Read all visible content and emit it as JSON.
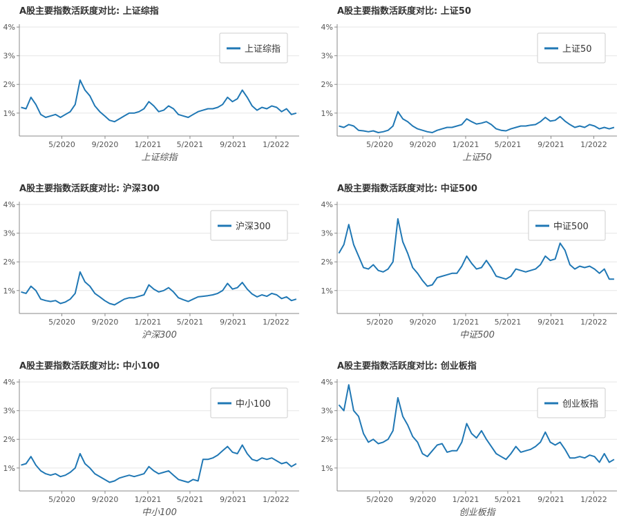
{
  "page": {
    "colors": {
      "series": "#1f77b4",
      "grid": "#e5e5e5",
      "axis": "#888888"
    }
  },
  "chart_data": [
    {
      "type": "line",
      "title": "A股主要指数活跃度对比: 上证综指",
      "xlabel": "上证综指",
      "ylabel": "",
      "legend": "top-right",
      "grid": true,
      "yticks": [
        "1%",
        "2%",
        "3%",
        "4%"
      ],
      "xticks": [
        "5/2020",
        "9/2020",
        "1/2021",
        "5/2021",
        "9/2021",
        "1/2022"
      ],
      "ylim": [
        0.2,
        4.1
      ],
      "x": [
        "2020-01-06",
        "2020-01-20",
        "2020-02-03",
        "2020-02-17",
        "2020-03-02",
        "2020-03-16",
        "2020-03-30",
        "2020-04-13",
        "2020-04-27",
        "2020-05-11",
        "2020-05-25",
        "2020-06-08",
        "2020-06-22",
        "2020-07-06",
        "2020-07-20",
        "2020-08-03",
        "2020-08-17",
        "2020-08-31",
        "2020-09-14",
        "2020-09-28",
        "2020-10-12",
        "2020-10-26",
        "2020-11-09",
        "2020-11-23",
        "2020-12-07",
        "2020-12-21",
        "2021-01-04",
        "2021-01-18",
        "2021-02-01",
        "2021-02-15",
        "2021-03-01",
        "2021-03-15",
        "2021-03-29",
        "2021-04-12",
        "2021-04-26",
        "2021-05-10",
        "2021-05-24",
        "2021-06-07",
        "2021-06-21",
        "2021-07-05",
        "2021-07-19",
        "2021-08-02",
        "2021-08-16",
        "2021-08-30",
        "2021-09-13",
        "2021-09-27",
        "2021-10-11",
        "2021-10-25",
        "2021-11-08",
        "2021-11-22",
        "2021-12-06",
        "2021-12-20",
        "2022-01-03",
        "2022-01-17",
        "2022-01-31",
        "2022-02-14",
        "2022-02-28"
      ],
      "series": [
        {
          "name": "上证综指",
          "values": [
            1.2,
            1.15,
            1.55,
            1.3,
            0.95,
            0.85,
            0.9,
            0.95,
            0.85,
            0.95,
            1.05,
            1.3,
            2.15,
            1.8,
            1.6,
            1.25,
            1.05,
            0.9,
            0.75,
            0.7,
            0.8,
            0.9,
            1.0,
            1.0,
            1.05,
            1.15,
            1.4,
            1.25,
            1.05,
            1.1,
            1.25,
            1.15,
            0.95,
            0.9,
            0.85,
            0.95,
            1.05,
            1.1,
            1.15,
            1.15,
            1.2,
            1.3,
            1.55,
            1.4,
            1.5,
            1.8,
            1.55,
            1.25,
            1.1,
            1.2,
            1.15,
            1.25,
            1.2,
            1.05,
            1.15,
            0.95,
            1.0
          ]
        }
      ]
    },
    {
      "type": "line",
      "title": "A股主要指数活跃度对比: 上证50",
      "xlabel": "上证50",
      "ylabel": "",
      "legend": "top-right",
      "grid": true,
      "yticks": [
        "1%",
        "2%",
        "3%",
        "4%"
      ],
      "xticks": [
        "5/2020",
        "9/2020",
        "1/2021",
        "5/2021",
        "9/2021",
        "1/2022"
      ],
      "ylim": [
        0.2,
        4.1
      ],
      "x": [
        "2020-01-06",
        "2020-01-20",
        "2020-02-03",
        "2020-02-17",
        "2020-03-02",
        "2020-03-16",
        "2020-03-30",
        "2020-04-13",
        "2020-04-27",
        "2020-05-11",
        "2020-05-25",
        "2020-06-08",
        "2020-06-22",
        "2020-07-06",
        "2020-07-20",
        "2020-08-03",
        "2020-08-17",
        "2020-08-31",
        "2020-09-14",
        "2020-09-28",
        "2020-10-12",
        "2020-10-26",
        "2020-11-09",
        "2020-11-23",
        "2020-12-07",
        "2020-12-21",
        "2021-01-04",
        "2021-01-18",
        "2021-02-01",
        "2021-02-15",
        "2021-03-01",
        "2021-03-15",
        "2021-03-29",
        "2021-04-12",
        "2021-04-26",
        "2021-05-10",
        "2021-05-24",
        "2021-06-07",
        "2021-06-21",
        "2021-07-05",
        "2021-07-19",
        "2021-08-02",
        "2021-08-16",
        "2021-08-30",
        "2021-09-13",
        "2021-09-27",
        "2021-10-11",
        "2021-10-25",
        "2021-11-08",
        "2021-11-22",
        "2021-12-06",
        "2021-12-20",
        "2022-01-03",
        "2022-01-17",
        "2022-01-31",
        "2022-02-14",
        "2022-02-28"
      ],
      "series": [
        {
          "name": "上证50",
          "values": [
            0.55,
            0.5,
            0.6,
            0.55,
            0.4,
            0.38,
            0.35,
            0.38,
            0.32,
            0.35,
            0.4,
            0.55,
            1.05,
            0.8,
            0.7,
            0.55,
            0.45,
            0.4,
            0.35,
            0.32,
            0.4,
            0.45,
            0.5,
            0.5,
            0.55,
            0.6,
            0.8,
            0.7,
            0.62,
            0.65,
            0.7,
            0.6,
            0.45,
            0.4,
            0.38,
            0.45,
            0.5,
            0.55,
            0.55,
            0.58,
            0.6,
            0.7,
            0.85,
            0.72,
            0.75,
            0.88,
            0.72,
            0.6,
            0.5,
            0.55,
            0.5,
            0.6,
            0.55,
            0.45,
            0.5,
            0.45,
            0.5
          ]
        }
      ]
    },
    {
      "type": "line",
      "title": "A股主要指数活跃度对比: 沪深300",
      "xlabel": "沪深300",
      "ylabel": "",
      "legend": "top-right",
      "grid": true,
      "yticks": [
        "1%",
        "2%",
        "3%",
        "4%"
      ],
      "xticks": [
        "5/2020",
        "9/2020",
        "1/2021",
        "5/2021",
        "9/2021",
        "1/2022"
      ],
      "ylim": [
        0.2,
        4.1
      ],
      "x": [
        "2020-01-06",
        "2020-01-20",
        "2020-02-03",
        "2020-02-17",
        "2020-03-02",
        "2020-03-16",
        "2020-03-30",
        "2020-04-13",
        "2020-04-27",
        "2020-05-11",
        "2020-05-25",
        "2020-06-08",
        "2020-06-22",
        "2020-07-06",
        "2020-07-20",
        "2020-08-03",
        "2020-08-17",
        "2020-08-31",
        "2020-09-14",
        "2020-09-28",
        "2020-10-12",
        "2020-10-26",
        "2020-11-09",
        "2020-11-23",
        "2020-12-07",
        "2020-12-21",
        "2021-01-04",
        "2021-01-18",
        "2021-02-01",
        "2021-02-15",
        "2021-03-01",
        "2021-03-15",
        "2021-03-29",
        "2021-04-12",
        "2021-04-26",
        "2021-05-10",
        "2021-05-24",
        "2021-06-07",
        "2021-06-21",
        "2021-07-05",
        "2021-07-19",
        "2021-08-02",
        "2021-08-16",
        "2021-08-30",
        "2021-09-13",
        "2021-09-27",
        "2021-10-11",
        "2021-10-25",
        "2021-11-08",
        "2021-11-22",
        "2021-12-06",
        "2021-12-20",
        "2022-01-03",
        "2022-01-17",
        "2022-01-31",
        "2022-02-14",
        "2022-02-28"
      ],
      "series": [
        {
          "name": "沪深300",
          "values": [
            0.95,
            0.9,
            1.15,
            1.0,
            0.7,
            0.65,
            0.62,
            0.65,
            0.55,
            0.6,
            0.7,
            0.9,
            1.65,
            1.3,
            1.15,
            0.9,
            0.78,
            0.65,
            0.55,
            0.5,
            0.6,
            0.7,
            0.75,
            0.75,
            0.8,
            0.85,
            1.2,
            1.05,
            0.95,
            1.0,
            1.1,
            0.95,
            0.75,
            0.68,
            0.62,
            0.7,
            0.78,
            0.8,
            0.82,
            0.85,
            0.9,
            1.0,
            1.25,
            1.05,
            1.1,
            1.28,
            1.05,
            0.88,
            0.78,
            0.85,
            0.8,
            0.9,
            0.85,
            0.72,
            0.78,
            0.65,
            0.7
          ]
        }
      ]
    },
    {
      "type": "line",
      "title": "A股主要指数活跃度对比: 中证500",
      "xlabel": "中证500",
      "ylabel": "",
      "legend": "top-right",
      "grid": true,
      "yticks": [
        "1%",
        "2%",
        "3%",
        "4%"
      ],
      "xticks": [
        "5/2020",
        "9/2020",
        "1/2021",
        "5/2021",
        "9/2021",
        "1/2022"
      ],
      "ylim": [
        0.2,
        4.1
      ],
      "x": [
        "2020-01-06",
        "2020-01-20",
        "2020-02-03",
        "2020-02-17",
        "2020-03-02",
        "2020-03-16",
        "2020-03-30",
        "2020-04-13",
        "2020-04-27",
        "2020-05-11",
        "2020-05-25",
        "2020-06-08",
        "2020-06-22",
        "2020-07-06",
        "2020-07-20",
        "2020-08-03",
        "2020-08-17",
        "2020-08-31",
        "2020-09-14",
        "2020-09-28",
        "2020-10-12",
        "2020-10-26",
        "2020-11-09",
        "2020-11-23",
        "2020-12-07",
        "2020-12-21",
        "2021-01-04",
        "2021-01-18",
        "2021-02-01",
        "2021-02-15",
        "2021-03-01",
        "2021-03-15",
        "2021-03-29",
        "2021-04-12",
        "2021-04-26",
        "2021-05-10",
        "2021-05-24",
        "2021-06-07",
        "2021-06-21",
        "2021-07-05",
        "2021-07-19",
        "2021-08-02",
        "2021-08-16",
        "2021-08-30",
        "2021-09-13",
        "2021-09-27",
        "2021-10-11",
        "2021-10-25",
        "2021-11-08",
        "2021-11-22",
        "2021-12-06",
        "2021-12-20",
        "2022-01-03",
        "2022-01-17",
        "2022-01-31",
        "2022-02-14",
        "2022-02-28"
      ],
      "series": [
        {
          "name": "中证500",
          "values": [
            2.3,
            2.6,
            3.3,
            2.6,
            2.2,
            1.8,
            1.75,
            1.9,
            1.7,
            1.65,
            1.75,
            2.0,
            3.5,
            2.7,
            2.3,
            1.8,
            1.6,
            1.35,
            1.15,
            1.2,
            1.45,
            1.5,
            1.55,
            1.6,
            1.6,
            1.85,
            2.2,
            1.95,
            1.75,
            1.8,
            2.05,
            1.8,
            1.5,
            1.45,
            1.4,
            1.5,
            1.75,
            1.7,
            1.65,
            1.7,
            1.75,
            1.9,
            2.2,
            2.05,
            2.1,
            2.65,
            2.4,
            1.9,
            1.75,
            1.85,
            1.8,
            1.85,
            1.75,
            1.6,
            1.75,
            1.4,
            1.4
          ]
        }
      ]
    },
    {
      "type": "line",
      "title": "A股主要指数活跃度对比: 中小100",
      "xlabel": "中小100",
      "ylabel": "",
      "legend": "top-right",
      "grid": true,
      "yticks": [
        "1%",
        "2%",
        "3%",
        "4%"
      ],
      "xticks": [
        "5/2020",
        "9/2020",
        "1/2021",
        "5/2021",
        "9/2021",
        "1/2022"
      ],
      "ylim": [
        0.2,
        4.1
      ],
      "x": [
        "2020-01-06",
        "2020-01-20",
        "2020-02-03",
        "2020-02-17",
        "2020-03-02",
        "2020-03-16",
        "2020-03-30",
        "2020-04-13",
        "2020-04-27",
        "2020-05-11",
        "2020-05-25",
        "2020-06-08",
        "2020-06-22",
        "2020-07-06",
        "2020-07-20",
        "2020-08-03",
        "2020-08-17",
        "2020-08-31",
        "2020-09-14",
        "2020-09-28",
        "2020-10-12",
        "2020-10-26",
        "2020-11-09",
        "2020-11-23",
        "2020-12-07",
        "2020-12-21",
        "2021-01-04",
        "2021-01-18",
        "2021-02-01",
        "2021-02-15",
        "2021-03-01",
        "2021-03-15",
        "2021-03-29",
        "2021-04-12",
        "2021-04-26",
        "2021-05-10",
        "2021-05-24",
        "2021-06-07",
        "2021-06-21",
        "2021-07-05",
        "2021-07-19",
        "2021-08-02",
        "2021-08-16",
        "2021-08-30",
        "2021-09-13",
        "2021-09-27",
        "2021-10-11",
        "2021-10-25",
        "2021-11-08",
        "2021-11-22",
        "2021-12-06",
        "2021-12-20",
        "2022-01-03",
        "2022-01-17",
        "2022-01-31",
        "2022-02-14",
        "2022-02-28"
      ],
      "series": [
        {
          "name": "中小100",
          "values": [
            1.1,
            1.15,
            1.4,
            1.1,
            0.9,
            0.8,
            0.75,
            0.8,
            0.7,
            0.75,
            0.85,
            1.0,
            1.5,
            1.15,
            1.0,
            0.8,
            0.7,
            0.6,
            0.5,
            0.55,
            0.65,
            0.7,
            0.75,
            0.7,
            0.75,
            0.8,
            1.05,
            0.9,
            0.8,
            0.85,
            0.9,
            0.75,
            0.6,
            0.55,
            0.5,
            0.6,
            0.55,
            1.3,
            1.3,
            1.35,
            1.45,
            1.6,
            1.75,
            1.55,
            1.5,
            1.8,
            1.5,
            1.3,
            1.25,
            1.35,
            1.3,
            1.35,
            1.25,
            1.15,
            1.2,
            1.05,
            1.15
          ]
        }
      ]
    },
    {
      "type": "line",
      "title": "A股主要指数活跃度对比: 创业板指",
      "xlabel": "创业板指",
      "ylabel": "",
      "legend": "top-right",
      "grid": true,
      "yticks": [
        "1%",
        "2%",
        "3%",
        "4%"
      ],
      "xticks": [
        "5/2020",
        "9/2020",
        "1/2021",
        "5/2021",
        "9/2021",
        "1/2022"
      ],
      "ylim": [
        0.2,
        4.1
      ],
      "x": [
        "2020-01-06",
        "2020-01-20",
        "2020-02-03",
        "2020-02-17",
        "2020-03-02",
        "2020-03-16",
        "2020-03-30",
        "2020-04-13",
        "2020-04-27",
        "2020-05-11",
        "2020-05-25",
        "2020-06-08",
        "2020-06-22",
        "2020-07-06",
        "2020-07-20",
        "2020-08-03",
        "2020-08-17",
        "2020-08-31",
        "2020-09-14",
        "2020-09-28",
        "2020-10-12",
        "2020-10-26",
        "2020-11-09",
        "2020-11-23",
        "2020-12-07",
        "2020-12-21",
        "2021-01-04",
        "2021-01-18",
        "2021-02-01",
        "2021-02-15",
        "2021-03-01",
        "2021-03-15",
        "2021-03-29",
        "2021-04-12",
        "2021-04-26",
        "2021-05-10",
        "2021-05-24",
        "2021-06-07",
        "2021-06-21",
        "2021-07-05",
        "2021-07-19",
        "2021-08-02",
        "2021-08-16",
        "2021-08-30",
        "2021-09-13",
        "2021-09-27",
        "2021-10-11",
        "2021-10-25",
        "2021-11-08",
        "2021-11-22",
        "2021-12-06",
        "2021-12-20",
        "2022-01-03",
        "2022-01-17",
        "2022-01-31",
        "2022-02-14",
        "2022-02-28"
      ],
      "series": [
        {
          "name": "创业板指",
          "values": [
            3.2,
            3.0,
            3.9,
            3.0,
            2.8,
            2.2,
            1.9,
            2.0,
            1.85,
            1.9,
            2.0,
            2.3,
            3.45,
            2.8,
            2.5,
            2.1,
            1.9,
            1.5,
            1.4,
            1.6,
            1.8,
            1.85,
            1.55,
            1.6,
            1.6,
            1.9,
            2.55,
            2.2,
            2.05,
            2.3,
            2.0,
            1.75,
            1.5,
            1.4,
            1.3,
            1.5,
            1.75,
            1.55,
            1.6,
            1.65,
            1.75,
            1.9,
            2.25,
            1.9,
            1.8,
            1.9,
            1.65,
            1.35,
            1.35,
            1.4,
            1.35,
            1.45,
            1.4,
            1.2,
            1.5,
            1.2,
            1.3
          ]
        }
      ]
    }
  ]
}
